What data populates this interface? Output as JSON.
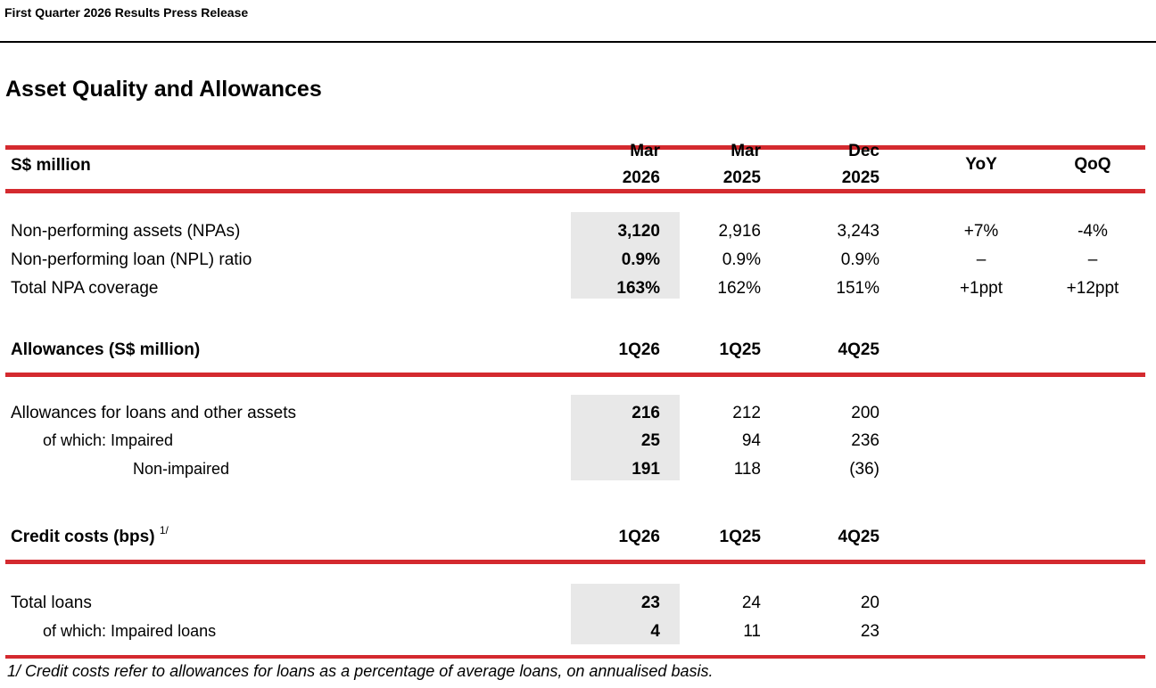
{
  "page_header": "First Quarter 2026 Results Press Release",
  "section_title": "Asset Quality and Allowances",
  "table1": {
    "unit_label": "S$ million",
    "col_headers": [
      {
        "line1": "Mar",
        "line2": "2026"
      },
      {
        "line1": "Mar",
        "line2": "2025"
      },
      {
        "line1": "Dec",
        "line2": "2025"
      }
    ],
    "yoy_header": "YoY",
    "qoq_header": "QoQ",
    "rows": [
      {
        "label": "Non-performing assets (NPAs)",
        "v1": "3,120",
        "v2": "2,916",
        "v3": "3,243",
        "yoy": "+7%",
        "qoq": "-4%"
      },
      {
        "label": "Non-performing loan (NPL) ratio",
        "v1": "0.9%",
        "v2": "0.9%",
        "v3": "0.9%",
        "yoy": "–",
        "qoq": "–"
      },
      {
        "label": "Total NPA coverage",
        "v1": "163%",
        "v2": "162%",
        "v3": "151%",
        "yoy": "+1ppt",
        "qoq": "+12ppt"
      }
    ]
  },
  "table2": {
    "title": "Allowances (S$ million)",
    "col_headers": [
      "1Q26",
      "1Q25",
      "4Q25"
    ],
    "rows": [
      {
        "label": "Allowances for loans and other assets",
        "v1": "216",
        "v2": "212",
        "v3": "200"
      },
      {
        "label": "of which: Impaired",
        "v1": "25",
        "v2": "94",
        "v3": "236"
      },
      {
        "label": "Non-impaired",
        "v1": "191",
        "v2": "118",
        "v3": "(36)"
      }
    ]
  },
  "table3": {
    "title": "Credit costs (bps)",
    "title_note": "1/",
    "col_headers": [
      "1Q26",
      "1Q25",
      "4Q25"
    ],
    "rows": [
      {
        "label": "Total loans",
        "v1": "23",
        "v2": "24",
        "v3": "20"
      },
      {
        "label": "of which: Impaired loans",
        "v1": "4",
        "v2": "11",
        "v3": "23"
      }
    ]
  },
  "footnote": "1/  Credit costs refer to allowances for loans as a percentage of average loans, on annualised basis.",
  "colors": {
    "accent_red": "#d42a2f",
    "shade": "#e8e8e8"
  }
}
